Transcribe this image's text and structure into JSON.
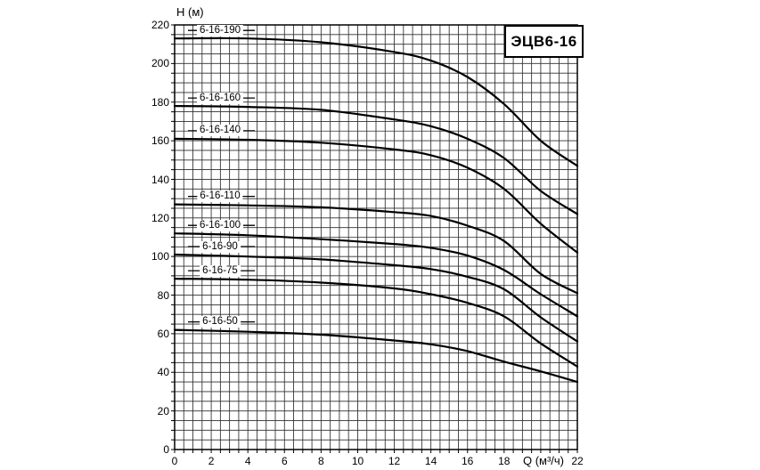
{
  "chart_data": {
    "type": "line",
    "title": "ЭЦВ6-16",
    "ylabel": "H (м)",
    "xlabel": "Q (м³/ч)",
    "xlim": [
      0,
      22
    ],
    "ylim": [
      0,
      220
    ],
    "x_minor_step": 0.5,
    "y_minor_step": 5,
    "grid": "on",
    "line_color": "#000000",
    "grid_color": "#2e2e2e",
    "legend_position": "inline-labels-left",
    "x_tick_values": [
      0,
      2,
      4,
      6,
      8,
      10,
      12,
      14,
      16,
      18,
      22
    ],
    "x_tick_labels": [
      "0",
      "2",
      "4",
      "6",
      "8",
      "10",
      "12",
      "14",
      "16",
      "18",
      "22"
    ],
    "y_tick_values": [
      0,
      20,
      40,
      60,
      80,
      100,
      120,
      140,
      160,
      180,
      200,
      220
    ],
    "y_tick_labels": [
      "0",
      "20",
      "40",
      "60",
      "80",
      "100",
      "120",
      "140",
      "160",
      "180",
      "200",
      "220"
    ],
    "series": [
      {
        "name": "6-16-190",
        "points": [
          [
            0,
            213
          ],
          [
            4,
            213
          ],
          [
            8,
            211
          ],
          [
            12,
            206
          ],
          [
            14,
            201.5
          ],
          [
            16,
            193
          ],
          [
            18,
            179
          ],
          [
            20,
            160
          ],
          [
            22,
            147
          ]
        ]
      },
      {
        "name": "6-16-160",
        "points": [
          [
            0,
            178
          ],
          [
            4,
            177.5
          ],
          [
            8,
            176
          ],
          [
            12,
            171
          ],
          [
            14,
            167.5
          ],
          [
            16,
            161
          ],
          [
            18,
            151
          ],
          [
            20,
            134
          ],
          [
            22,
            122
          ]
        ]
      },
      {
        "name": "6-16-140",
        "points": [
          [
            0,
            161
          ],
          [
            4,
            160.5
          ],
          [
            8,
            159
          ],
          [
            12,
            155.5
          ],
          [
            14,
            152.5
          ],
          [
            16,
            146
          ],
          [
            18,
            135
          ],
          [
            20,
            117
          ],
          [
            22,
            102
          ]
        ]
      },
      {
        "name": "6-16-110",
        "points": [
          [
            0,
            127
          ],
          [
            4,
            126.5
          ],
          [
            8,
            125.5
          ],
          [
            12,
            123
          ],
          [
            14,
            121
          ],
          [
            16,
            116
          ],
          [
            18,
            108
          ],
          [
            20,
            91
          ],
          [
            22,
            81
          ]
        ]
      },
      {
        "name": "6-16-100",
        "points": [
          [
            0,
            112
          ],
          [
            4,
            111
          ],
          [
            8,
            109
          ],
          [
            12,
            106.5
          ],
          [
            14,
            104.5
          ],
          [
            16,
            100.5
          ],
          [
            18,
            93
          ],
          [
            20,
            80.5
          ],
          [
            22,
            69
          ]
        ]
      },
      {
        "name": "6-16-90",
        "points": [
          [
            0,
            101
          ],
          [
            4,
            100
          ],
          [
            8,
            98.5
          ],
          [
            12,
            95.5
          ],
          [
            14,
            93.5
          ],
          [
            16,
            89.5
          ],
          [
            18,
            83
          ],
          [
            20,
            68.5
          ],
          [
            22,
            56
          ]
        ]
      },
      {
        "name": "6-16-75",
        "points": [
          [
            0,
            88.5
          ],
          [
            4,
            88
          ],
          [
            8,
            86.5
          ],
          [
            12,
            83.5
          ],
          [
            14,
            80.5
          ],
          [
            16,
            76
          ],
          [
            18,
            69
          ],
          [
            20,
            55
          ],
          [
            22,
            43
          ]
        ]
      },
      {
        "name": "6-16-50",
        "points": [
          [
            0,
            62
          ],
          [
            4,
            61
          ],
          [
            8,
            59.5
          ],
          [
            12,
            56.5
          ],
          [
            14,
            54.5
          ],
          [
            16,
            51
          ],
          [
            18,
            45.5
          ],
          [
            20,
            40.5
          ],
          [
            22,
            35
          ]
        ]
      }
    ]
  }
}
